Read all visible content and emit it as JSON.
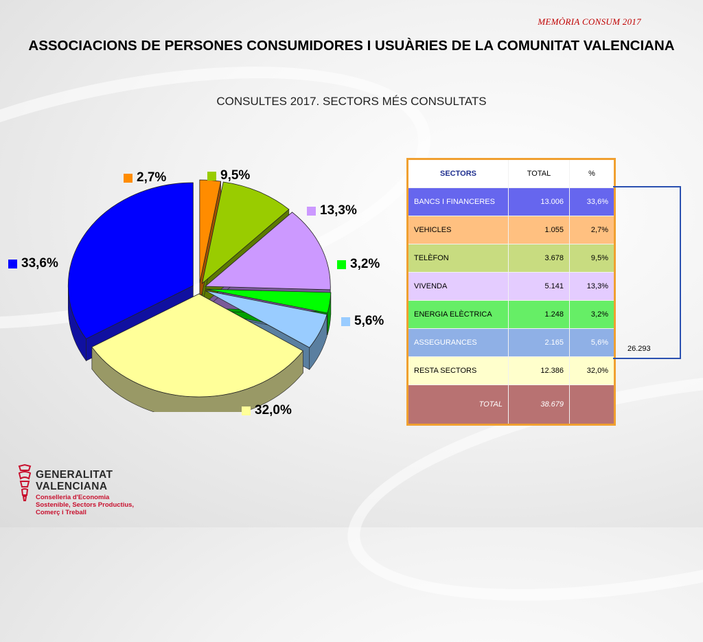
{
  "header": {
    "tag": "MEMÒRIA CONSUM 2017",
    "title": "ASSOCIACIONS DE PERSONES CONSUMIDORES I USUÀRIES DE LA COMUNITAT VALENCIANA",
    "subtitle": "CONSULTES 2017. SECTORS MÉS CONSULTATS"
  },
  "chart_data": {
    "type": "pie",
    "title": "CONSULTES 2017. SECTORS MÉS CONSULTATS",
    "labels_shown": [
      "33,6%",
      "2,7%",
      "9,5%",
      "13,3%",
      "3,2%",
      "5,6%",
      "32,0%"
    ],
    "slices": [
      {
        "sector": "BANCS I FINANCERES",
        "value": 33.6,
        "label": "33,6%",
        "color": "#0000ff",
        "side": "#1010a0"
      },
      {
        "sector": "VEHICLES",
        "value": 2.7,
        "label": "2,7%",
        "color": "#ff8c00",
        "side": "#a05000"
      },
      {
        "sector": "TELÈFON",
        "value": 9.5,
        "label": "9,5%",
        "color": "#99cc00",
        "side": "#5c7a00"
      },
      {
        "sector": "VIVENDA",
        "value": 13.3,
        "label": "13,3%",
        "color": "#cc99ff",
        "side": "#7a5a99"
      },
      {
        "sector": "ENERGIA ELÈCTRICA",
        "value": 3.2,
        "label": "3,2%",
        "color": "#00ff00",
        "side": "#00a000"
      },
      {
        "sector": "ASSEGURANCES",
        "value": 5.6,
        "label": "5,6%",
        "color": "#99ccff",
        "side": "#5a7fa0"
      },
      {
        "sector": "RESTA SECTORS",
        "value": 32.0,
        "label": "32,0%",
        "color": "#ffff99",
        "side": "#999966"
      }
    ]
  },
  "table": {
    "headers": {
      "sector": "SECTORS",
      "total": "TOTAL",
      "pct": "%"
    },
    "rows": [
      {
        "sector": "BANCS I FINANCERES",
        "total": "13.006",
        "pct": "33,6%",
        "bg": "#6666ee",
        "fg": "#ffffff"
      },
      {
        "sector": "VEHICLES",
        "total": "1.055",
        "pct": "2,7%",
        "bg": "#ffc080",
        "fg": "#000000"
      },
      {
        "sector": "TELÈFON",
        "total": "3.678",
        "pct": "9,5%",
        "bg": "#c8dc80",
        "fg": "#000000"
      },
      {
        "sector": "VIVENDA",
        "total": "5.141",
        "pct": "13,3%",
        "bg": "#e4ccff",
        "fg": "#000000"
      },
      {
        "sector": "ENERGIA ELÈCTRICA",
        "total": "1.248",
        "pct": "3,2%",
        "bg": "#66ee66",
        "fg": "#000000"
      },
      {
        "sector": "ASSEGURANCES",
        "total": "2.165",
        "pct": "5,6%",
        "bg": "#8fb0e6",
        "fg": "#ffffff"
      },
      {
        "sector": "RESTA SECTORS",
        "total": "12.386",
        "pct": "32,0%",
        "bg": "#ffffcc",
        "fg": "#000000"
      }
    ],
    "total_row": {
      "label": "TOTAL",
      "total": "38.679",
      "pct": "",
      "bg": "#b87272"
    },
    "bracket_value": "26.293"
  },
  "logo": {
    "name_line1": "GENERALITAT",
    "name_line2": "VALENCIANA",
    "dept_line1": "Conselleria d'Economia",
    "dept_line2": "Sostenible, Sectors Productius,",
    "dept_line3": "Comerç i Treball"
  }
}
